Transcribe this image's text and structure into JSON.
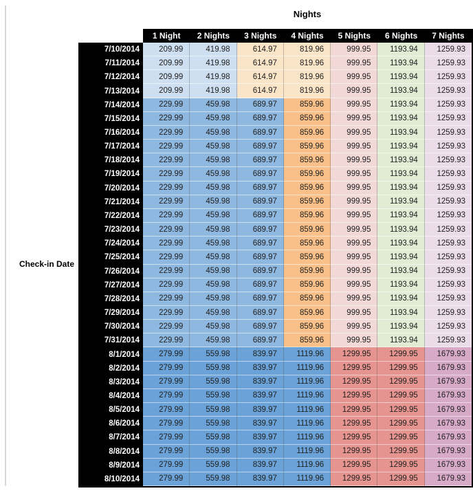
{
  "palette": {
    "pale_blue": "#CEDFF1",
    "pale_orange": "#FBE5C9",
    "pale_pink": "#F2D9D8",
    "pale_green": "#E0EDD4",
    "pale_mauve": "#EADCE8",
    "mid_blue": "#8FB8E0",
    "mid_orange": "#F9C189",
    "dark_blue": "#6BA3D8",
    "salmon": "#E6948F",
    "dark_mauve": "#D7ABC8",
    "header_bg": "#000000",
    "header_text": "#FFFFFF",
    "cell_text": "#202020"
  },
  "chart_data": {
    "type": "table",
    "title": "Nights",
    "row_axis_label": "Check-in Date",
    "columns": [
      "1 Night",
      "2 Nights",
      "3 Nights",
      "4 Nights",
      "5 Nights",
      "6 Nights",
      "7 Nights"
    ],
    "band_colors": {
      "early": [
        "pale_blue",
        "pale_blue",
        "pale_orange",
        "pale_orange",
        "pale_pink",
        "pale_green",
        "pale_mauve"
      ],
      "mid": [
        "mid_blue",
        "mid_blue",
        "mid_blue",
        "mid_orange",
        "pale_pink",
        "pale_green",
        "pale_mauve"
      ],
      "august": [
        "dark_blue",
        "dark_blue",
        "dark_blue",
        "dark_blue",
        "salmon",
        "salmon",
        "dark_mauve"
      ]
    },
    "rows": [
      {
        "date": "7/10/2014",
        "band": "early",
        "values": [
          "209.99",
          "419.98",
          "614.97",
          "819.96",
          "999.95",
          "1193.94",
          "1259.93"
        ]
      },
      {
        "date": "7/11/2014",
        "band": "early",
        "values": [
          "209.99",
          "419.98",
          "614.97",
          "819.96",
          "999.95",
          "1193.94",
          "1259.93"
        ]
      },
      {
        "date": "7/12/2014",
        "band": "early",
        "values": [
          "209.99",
          "419.98",
          "614.97",
          "819.96",
          "999.95",
          "1193.94",
          "1259.93"
        ]
      },
      {
        "date": "7/13/2014",
        "band": "early",
        "values": [
          "209.99",
          "419.98",
          "614.97",
          "819.96",
          "999.95",
          "1193.94",
          "1259.93"
        ]
      },
      {
        "date": "7/14/2014",
        "band": "mid",
        "values": [
          "229.99",
          "459.98",
          "689.97",
          "859.96",
          "999.95",
          "1193.94",
          "1259.93"
        ]
      },
      {
        "date": "7/15/2014",
        "band": "mid",
        "values": [
          "229.99",
          "459.98",
          "689.97",
          "859.96",
          "999.95",
          "1193.94",
          "1259.93"
        ]
      },
      {
        "date": "7/16/2014",
        "band": "mid",
        "values": [
          "229.99",
          "459.98",
          "689.97",
          "859.96",
          "999.95",
          "1193.94",
          "1259.93"
        ]
      },
      {
        "date": "7/17/2014",
        "band": "mid",
        "values": [
          "229.99",
          "459.98",
          "689.97",
          "859.96",
          "999.95",
          "1193.94",
          "1259.93"
        ]
      },
      {
        "date": "7/18/2014",
        "band": "mid",
        "values": [
          "229.99",
          "459.98",
          "689.97",
          "859.96",
          "999.95",
          "1193.94",
          "1259.93"
        ]
      },
      {
        "date": "7/19/2014",
        "band": "mid",
        "values": [
          "229.99",
          "459.98",
          "689.97",
          "859.96",
          "999.95",
          "1193.94",
          "1259.93"
        ]
      },
      {
        "date": "7/20/2014",
        "band": "mid",
        "values": [
          "229.99",
          "459.98",
          "689.97",
          "859.96",
          "999.95",
          "1193.94",
          "1259.93"
        ]
      },
      {
        "date": "7/21/2014",
        "band": "mid",
        "values": [
          "229.99",
          "459.98",
          "689.97",
          "859.96",
          "999.95",
          "1193.94",
          "1259.93"
        ]
      },
      {
        "date": "7/22/2014",
        "band": "mid",
        "values": [
          "229.99",
          "459.98",
          "689.97",
          "859.96",
          "999.95",
          "1193.94",
          "1259.93"
        ]
      },
      {
        "date": "7/23/2014",
        "band": "mid",
        "values": [
          "229.99",
          "459.98",
          "689.97",
          "859.96",
          "999.95",
          "1193.94",
          "1259.93"
        ]
      },
      {
        "date": "7/24/2014",
        "band": "mid",
        "values": [
          "229.99",
          "459.98",
          "689.97",
          "859.96",
          "999.95",
          "1193.94",
          "1259.93"
        ]
      },
      {
        "date": "7/25/2014",
        "band": "mid",
        "values": [
          "229.99",
          "459.98",
          "689.97",
          "859.96",
          "999.95",
          "1193.94",
          "1259.93"
        ]
      },
      {
        "date": "7/26/2014",
        "band": "mid",
        "values": [
          "229.99",
          "459.98",
          "689.97",
          "859.96",
          "999.95",
          "1193.94",
          "1259.93"
        ]
      },
      {
        "date": "7/27/2014",
        "band": "mid",
        "values": [
          "229.99",
          "459.98",
          "689.97",
          "859.96",
          "999.95",
          "1193.94",
          "1259.93"
        ]
      },
      {
        "date": "7/28/2014",
        "band": "mid",
        "values": [
          "229.99",
          "459.98",
          "689.97",
          "859.96",
          "999.95",
          "1193.94",
          "1259.93"
        ]
      },
      {
        "date": "7/29/2014",
        "band": "mid",
        "values": [
          "229.99",
          "459.98",
          "689.97",
          "859.96",
          "999.95",
          "1193.94",
          "1259.93"
        ]
      },
      {
        "date": "7/30/2014",
        "band": "mid",
        "values": [
          "229.99",
          "459.98",
          "689.97",
          "859.96",
          "999.95",
          "1193.94",
          "1259.93"
        ]
      },
      {
        "date": "7/31/2014",
        "band": "mid",
        "values": [
          "229.99",
          "459.98",
          "689.97",
          "859.96",
          "999.95",
          "1193.94",
          "1259.93"
        ]
      },
      {
        "date": "8/1/2014",
        "band": "august",
        "values": [
          "279.99",
          "559.98",
          "839.97",
          "1119.96",
          "1299.95",
          "1299.95",
          "1679.93"
        ]
      },
      {
        "date": "8/2/2014",
        "band": "august",
        "values": [
          "279.99",
          "559.98",
          "839.97",
          "1119.96",
          "1299.95",
          "1299.95",
          "1679.93"
        ]
      },
      {
        "date": "8/3/2014",
        "band": "august",
        "values": [
          "279.99",
          "559.98",
          "839.97",
          "1119.96",
          "1299.95",
          "1299.95",
          "1679.93"
        ]
      },
      {
        "date": "8/4/2014",
        "band": "august",
        "values": [
          "279.99",
          "559.98",
          "839.97",
          "1119.96",
          "1299.95",
          "1299.95",
          "1679.93"
        ]
      },
      {
        "date": "8/5/2014",
        "band": "august",
        "values": [
          "279.99",
          "559.98",
          "839.97",
          "1119.96",
          "1299.95",
          "1299.95",
          "1679.93"
        ]
      },
      {
        "date": "8/6/2014",
        "band": "august",
        "values": [
          "279.99",
          "559.98",
          "839.97",
          "1119.96",
          "1299.95",
          "1299.95",
          "1679.93"
        ]
      },
      {
        "date": "8/7/2014",
        "band": "august",
        "values": [
          "279.99",
          "559.98",
          "839.97",
          "1119.96",
          "1299.95",
          "1299.95",
          "1679.93"
        ]
      },
      {
        "date": "8/8/2014",
        "band": "august",
        "values": [
          "279.99",
          "559.98",
          "839.97",
          "1119.96",
          "1299.95",
          "1299.95",
          "1679.93"
        ]
      },
      {
        "date": "8/9/2014",
        "band": "august",
        "values": [
          "279.99",
          "559.98",
          "839.97",
          "1119.96",
          "1299.95",
          "1299.95",
          "1679.93"
        ]
      },
      {
        "date": "8/10/2014",
        "band": "august",
        "values": [
          "279.99",
          "559.98",
          "839.97",
          "1119.96",
          "1299.95",
          "1299.95",
          "1679.93"
        ]
      }
    ]
  }
}
